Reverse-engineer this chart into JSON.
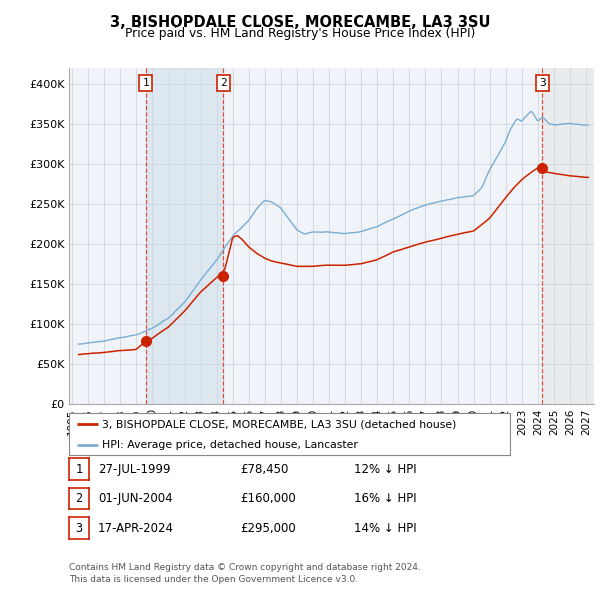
{
  "title": "3, BISHOPDALE CLOSE, MORECAMBE, LA3 3SU",
  "subtitle": "Price paid vs. HM Land Registry's House Price Index (HPI)",
  "ylim": [
    0,
    420000
  ],
  "xlim_start": 1994.8,
  "xlim_end": 2027.5,
  "yticks": [
    0,
    50000,
    100000,
    150000,
    200000,
    250000,
    300000,
    350000,
    400000
  ],
  "ytick_labels": [
    "£0",
    "£50K",
    "£100K",
    "£150K",
    "£200K",
    "£250K",
    "£300K",
    "£350K",
    "£400K"
  ],
  "xticks": [
    1995,
    1996,
    1997,
    1998,
    1999,
    2000,
    2001,
    2002,
    2003,
    2004,
    2005,
    2006,
    2007,
    2008,
    2009,
    2010,
    2011,
    2012,
    2013,
    2014,
    2015,
    2016,
    2017,
    2018,
    2019,
    2020,
    2021,
    2022,
    2023,
    2024,
    2025,
    2026,
    2027
  ],
  "hpi_color": "#7aadd4",
  "price_color": "#cc2200",
  "bg_color": "#f0f4f8",
  "grid_color": "#c8d0d8",
  "sale1_x": 1999.57,
  "sale1_y": 78450,
  "sale2_x": 2004.42,
  "sale2_y": 160000,
  "sale3_x": 2024.29,
  "sale3_y": 295000,
  "legend_line1": "3, BISHOPDALE CLOSE, MORECAMBE, LA3 3SU (detached house)",
  "legend_line2": "HPI: Average price, detached house, Lancaster",
  "table_rows": [
    {
      "num": "1",
      "date": "27-JUL-1999",
      "price": "£78,450",
      "hpi": "12% ↓ HPI"
    },
    {
      "num": "2",
      "date": "01-JUN-2004",
      "price": "£160,000",
      "hpi": "16% ↓ HPI"
    },
    {
      "num": "3",
      "date": "17-APR-2024",
      "price": "£295,000",
      "hpi": "14% ↓ HPI"
    }
  ],
  "footnote1": "Contains HM Land Registry data © Crown copyright and database right 2024.",
  "footnote2": "This data is licensed under the Open Government Licence v3.0."
}
